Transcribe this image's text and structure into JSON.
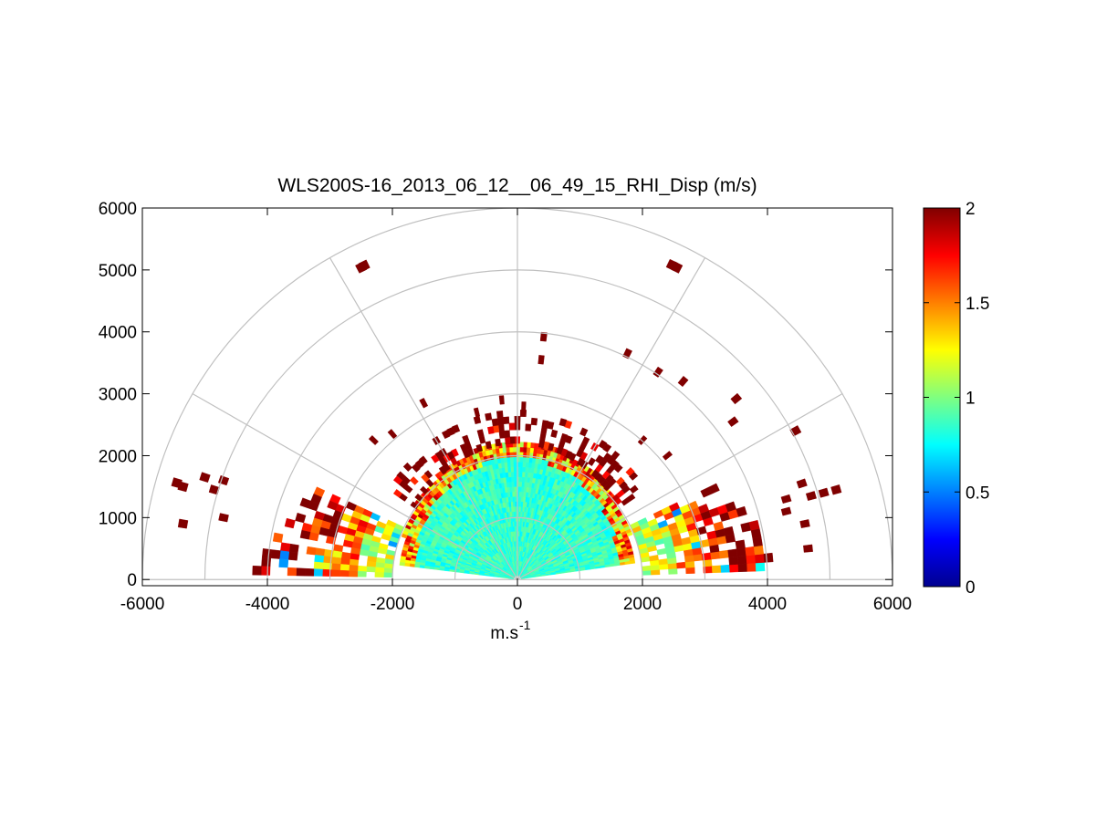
{
  "chart_data": {
    "type": "heatmap",
    "subtype": "polar RHI scan (half-disc, elevation 0-180 deg)",
    "title": "WLS200S-16_2013_06_12__06_49_15_RHI_Disp (m/s)",
    "xlabel": "m.s",
    "xlabel_superscript": "-1",
    "ylabel": "",
    "xlim": [
      -6000,
      6000
    ],
    "ylim": [
      -100,
      6000
    ],
    "x_ticks": [
      "-6000",
      "-4000",
      "-2000",
      "0",
      "2000",
      "4000",
      "6000"
    ],
    "y_ticks": [
      "0",
      "1000",
      "2000",
      "3000",
      "4000",
      "5000",
      "6000"
    ],
    "polar_grid": {
      "range_rings": [
        1000,
        2000,
        3000,
        4000,
        5000,
        6000
      ],
      "spokes_deg": [
        0,
        30,
        60,
        90,
        120,
        150,
        180
      ],
      "grid": true
    },
    "colormap": "jet",
    "colorbar": {
      "range": [
        0,
        2
      ],
      "ticks": [
        "0",
        "0.5",
        "1",
        "1.5",
        "2"
      ],
      "placement": "right"
    },
    "data_regions": [
      {
        "region": "dense core, elevation ~10-170 deg, range 0-2000 m",
        "typical_value": 0.9,
        "range": [
          0.8,
          1.1
        ]
      },
      {
        "region": "low-elevation wings, range 2000-4300 m",
        "typical_value": 1.5,
        "range": [
          0.6,
          2.0
        ]
      },
      {
        "region": "outer edge of core, range ~1900-2500 m",
        "typical_value": 2.0,
        "range": [
          1.6,
          2.0
        ]
      },
      {
        "region": "sparse isolated returns, range 2500-5500 m",
        "typical_value": 2.0,
        "range": [
          1.8,
          2.0
        ]
      }
    ],
    "isolated_returns": [
      {
        "x": -2450,
        "y": 5070
      },
      {
        "x": -2500,
        "y": 5040
      },
      {
        "x": 2470,
        "y": 5080
      },
      {
        "x": 2550,
        "y": 5040
      },
      {
        "x": 420,
        "y": 3920
      },
      {
        "x": 380,
        "y": 3550
      },
      {
        "x": 1760,
        "y": 3650
      },
      {
        "x": 2250,
        "y": 3350
      },
      {
        "x": 2650,
        "y": 3200
      },
      {
        "x": 3500,
        "y": 2920
      },
      {
        "x": 3450,
        "y": 2550
      },
      {
        "x": 4450,
        "y": 2400
      },
      {
        "x": -1500,
        "y": 2850
      },
      {
        "x": -650,
        "y": 2700
      },
      {
        "x": -250,
        "y": 2900
      },
      {
        "x": 100,
        "y": 2800
      },
      {
        "x": -2000,
        "y": 2350
      },
      {
        "x": -2300,
        "y": 2250
      },
      {
        "x": 2000,
        "y": 2250
      },
      {
        "x": 2400,
        "y": 2000
      },
      {
        "x": -5350,
        "y": 1500
      },
      {
        "x": -5450,
        "y": 1560
      },
      {
        "x": -5000,
        "y": 1650
      },
      {
        "x": -4850,
        "y": 1450
      },
      {
        "x": -4700,
        "y": 1600
      },
      {
        "x": -5350,
        "y": 900
      },
      {
        "x": -4700,
        "y": 1000
      },
      {
        "x": 4550,
        "y": 1550
      },
      {
        "x": 4700,
        "y": 1350
      },
      {
        "x": 4900,
        "y": 1400
      },
      {
        "x": 5100,
        "y": 1450
      },
      {
        "x": 4300,
        "y": 1100
      },
      {
        "x": 4600,
        "y": 900
      },
      {
        "x": 4650,
        "y": 500
      },
      {
        "x": 4300,
        "y": 1300
      }
    ]
  }
}
